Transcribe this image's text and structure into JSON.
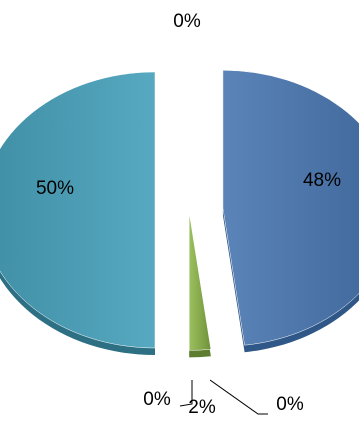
{
  "chart_data": {
    "type": "pie",
    "title": "",
    "slices": [
      {
        "label": "48%",
        "value": 48,
        "color": "#4a73a8"
      },
      {
        "label": "2%",
        "value": 2,
        "color": "#8caf4e"
      },
      {
        "label": "0%",
        "value": 0,
        "color": "#8caf4e"
      },
      {
        "label": "0%",
        "value": 0,
        "color": "#8caf4e"
      },
      {
        "label": "50%",
        "value": 50,
        "color": "#4a9db5"
      },
      {
        "label": "0%",
        "value": 0,
        "color": "#4a9db5"
      }
    ],
    "exploded": true,
    "three_d": true,
    "legend": "none"
  }
}
